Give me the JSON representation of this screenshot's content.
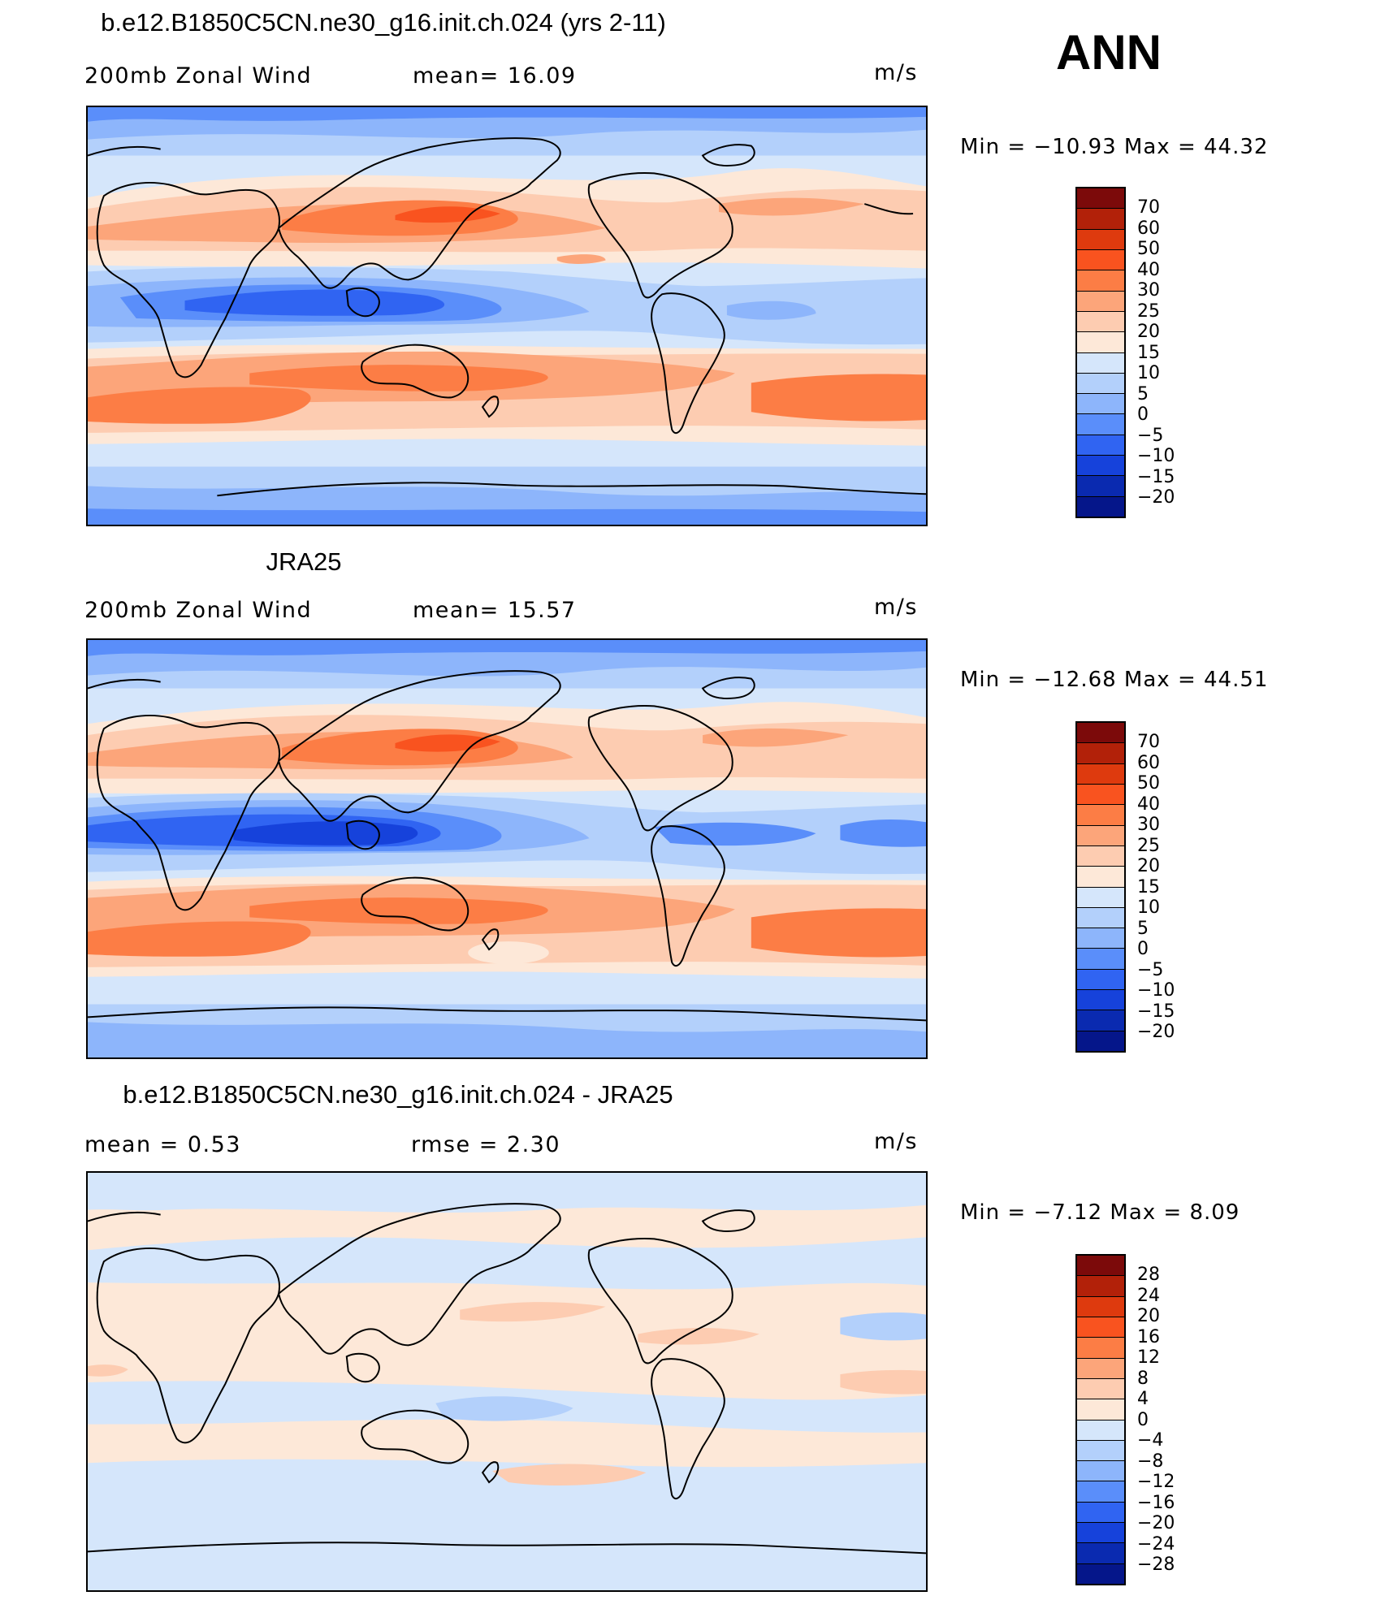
{
  "season": "ANN",
  "panels": [
    {
      "title": "b.e12.B1850C5CN.ne30_g16.init.ch.024 (yrs 2-11)",
      "left_label": "200mb  Zonal  Wind",
      "mid_label": "mean=   16.09",
      "units": "m/s",
      "minmax": "Min  =  −10.93  Max  =    44.32",
      "colorbar_labels": [
        "70",
        "60",
        "50",
        "40",
        "30",
        "25",
        "20",
        "15",
        "10",
        "5",
        "0",
        "−5",
        "−10",
        "−15",
        "−20"
      ]
    },
    {
      "title": "JRA25",
      "left_label": "200mb  Zonal  Wind",
      "mid_label": "mean=   15.57",
      "units": "m/s",
      "minmax": "Min  =  −12.68  Max  =    44.51",
      "colorbar_labels": [
        "70",
        "60",
        "50",
        "40",
        "30",
        "25",
        "20",
        "15",
        "10",
        "5",
        "0",
        "−5",
        "−10",
        "−15",
        "−20"
      ]
    },
    {
      "title": "b.e12.B1850C5CN.ne30_g16.init.ch.024 - JRA25",
      "left_label": "mean  =     0.53",
      "mid_label": "rmse  =     2.30",
      "units": "m/s",
      "minmax": "Min  =    −7.12  Max  =      8.09",
      "colorbar_labels": [
        "28",
        "24",
        "20",
        "16",
        "12",
        "8",
        "4",
        "0",
        "−4",
        "−8",
        "−12",
        "−16",
        "−20",
        "−24",
        "−28"
      ]
    }
  ],
  "colors": {
    "palette": [
      "#7c0a0a",
      "#b22109",
      "#de3a0e",
      "#f9531f",
      "#fc7d45",
      "#fca57a",
      "#fdccb1",
      "#fde8d8",
      "#d5e6fb",
      "#b3d0fb",
      "#8db5fb",
      "#5a8efa",
      "#3064f2",
      "#1642db",
      "#0a2ab0",
      "#05168a"
    ],
    "contrast_for_zero_fill_note": ""
  }
}
